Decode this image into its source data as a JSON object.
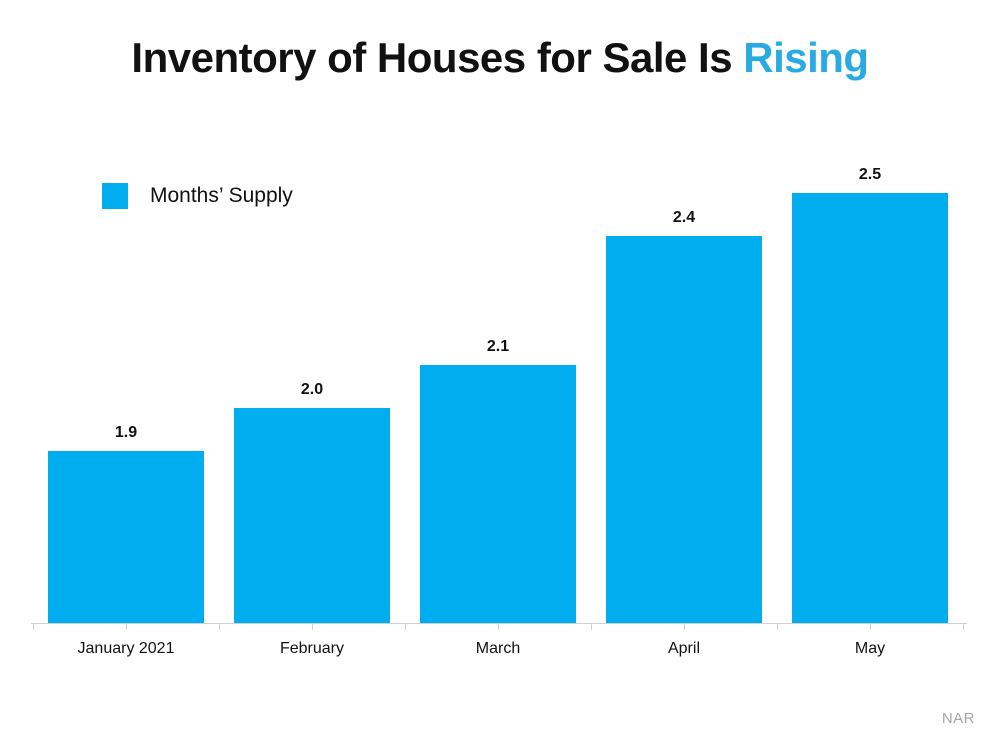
{
  "title": {
    "prefix": "Inventory of Houses for Sale Is ",
    "accent": "Rising",
    "accent_color": "#29abe2"
  },
  "legend": {
    "label": "Months’ Supply",
    "swatch_color": "#00aef0"
  },
  "source": "NAR",
  "chart_data": {
    "type": "bar",
    "title": "Inventory of Houses for Sale Is Rising",
    "categories": [
      "January 2021",
      "February",
      "March",
      "April",
      "May"
    ],
    "values": [
      1.9,
      2.0,
      2.1,
      2.4,
      2.5
    ],
    "value_labels": [
      "1.9",
      "2.0",
      "2.1",
      "2.4",
      "2.5"
    ],
    "series": [
      {
        "name": "Months’ Supply",
        "values": [
          1.9,
          2.0,
          2.1,
          2.4,
          2.5
        ]
      }
    ],
    "bar_color": "#00aef0",
    "xlabel": "",
    "ylabel": "",
    "ylim": [
      1.5,
      2.5
    ],
    "grid": false,
    "legend_position": "top-left",
    "data_labels": true,
    "source": "NAR"
  }
}
